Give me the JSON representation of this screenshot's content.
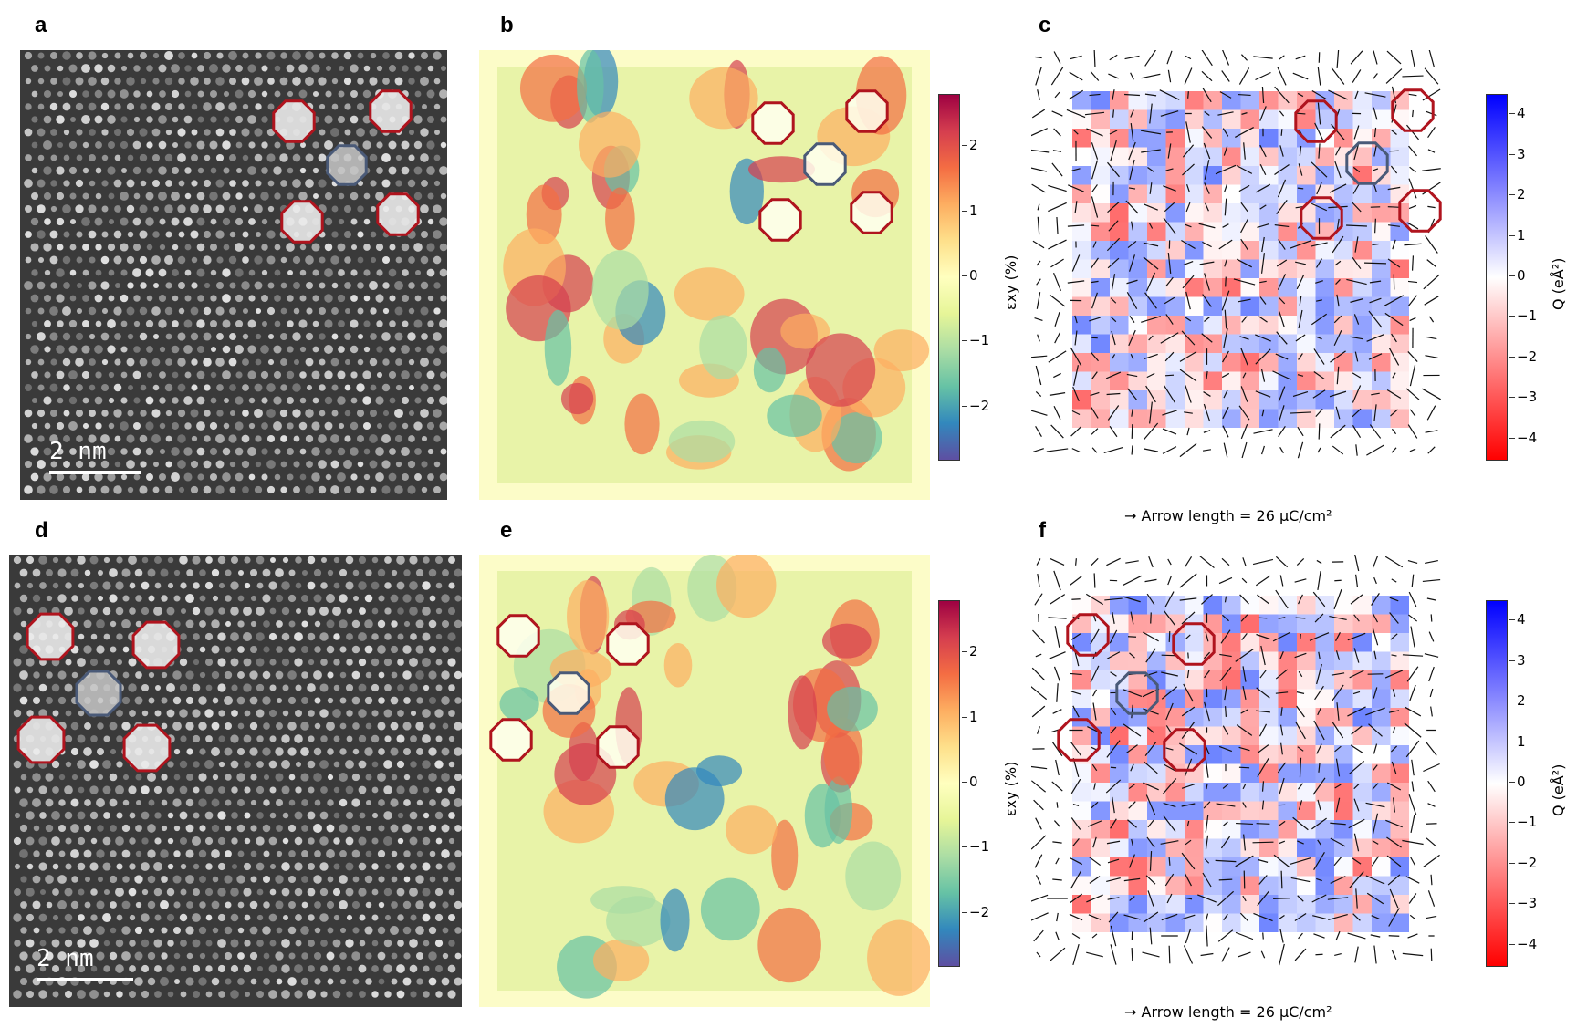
{
  "panels": {
    "a": {
      "letter": "a",
      "scalebar": "2 nm"
    },
    "b": {
      "letter": "b"
    },
    "c": {
      "letter": "c",
      "arrow_caption": "Arrow length = 26 μC/cm²"
    },
    "d": {
      "letter": "d",
      "scalebar": "2 nm"
    },
    "e": {
      "letter": "e"
    },
    "f": {
      "letter": "f",
      "arrow_caption": "Arrow length = 26 μC/cm²"
    }
  },
  "strain_colorbar": {
    "label": "εxy (%)",
    "ticks": [
      "2",
      "1",
      "0",
      "−1",
      "−2"
    ],
    "range": [
      -2.8,
      2.8
    ],
    "colormap": "Spectral_r"
  },
  "charge_colorbar": {
    "label": "Q (eÅ²)",
    "ticks": [
      "4",
      "3",
      "2",
      "1",
      "0",
      "−1",
      "−2",
      "−3",
      "−4"
    ],
    "range": [
      -4.5,
      4.5
    ],
    "colormap": "bwr_r"
  },
  "colors": {
    "octagon_red": "#b0141e",
    "octagon_blue": "#4a5a78"
  }
}
